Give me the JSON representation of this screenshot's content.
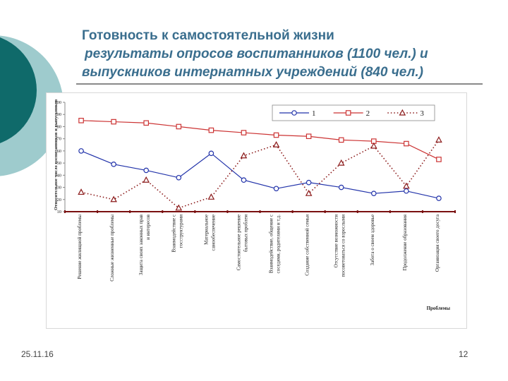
{
  "slide": {
    "title_line1": "Готовность к самостоятельной жизни",
    "title_line2": "результаты опросов воспитанников (1100 чел.) и",
    "title_line3": "выпускников интернатных учреждений (840 чел.)",
    "date": "25.11.16",
    "page_number": "12",
    "colors": {
      "title": "#3a6e8e",
      "deco_dark": "#0f6a6a",
      "deco_light": "#9ecbcd"
    }
  },
  "chart_data": {
    "type": "line",
    "ylabel": "Относительное число воспитанников и выпускников",
    "xlabel": "Проблемы",
    "ylim": [
      10,
      100
    ],
    "yticks": [
      10,
      20,
      30,
      40,
      50,
      60,
      70,
      80,
      90,
      100
    ],
    "legend_position": "top-right",
    "categories": [
      "Решение жилищной проблемы",
      "Сложные жизненные проблемы",
      "Защита своих законных прав и интересов",
      "Взаимодействие с госструктурами",
      "Материальное самообеспечение",
      "Самостоятельное решение бытовых проблем",
      "Взаимодействие, общение с соседями, родителями и т.д.",
      "Создание собственной семьи",
      "Отсутствие возможности посоветоваться со взрослыми",
      "Забота о своем здоровье",
      "Продолжение образования",
      "Организация своего досуга"
    ],
    "series": [
      {
        "name": "1",
        "color": "#2233aa",
        "marker": "circle",
        "style": "solid",
        "values": [
          60,
          49,
          44,
          38,
          58,
          36,
          29,
          34,
          30,
          25,
          27,
          21
        ]
      },
      {
        "name": "2",
        "color": "#cc3333",
        "marker": "square",
        "style": "solid",
        "values": [
          85,
          84,
          83,
          80,
          77,
          75,
          73,
          72,
          69,
          68,
          66,
          53
        ]
      },
      {
        "name": "3",
        "color": "#8b1a1a",
        "marker": "triangle",
        "style": "dotted",
        "values": [
          26,
          20,
          36,
          13,
          22,
          56,
          65,
          25,
          50,
          64,
          31,
          69
        ]
      }
    ]
  }
}
